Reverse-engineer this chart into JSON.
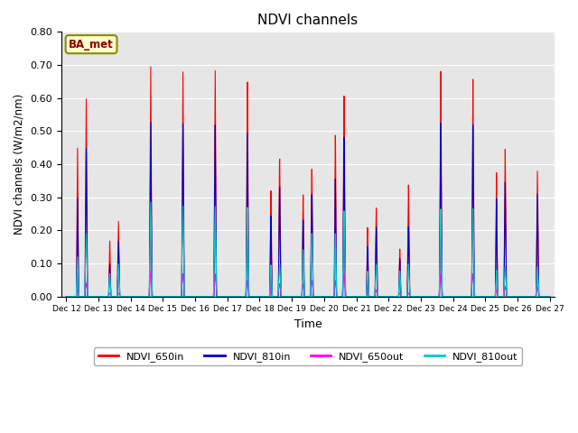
{
  "title": "NDVI channels",
  "xlabel": "Time",
  "ylabel": "NDVI channels (W/m2/nm)",
  "ylim": [
    0.0,
    0.8
  ],
  "annotation": "BA_met",
  "bg_color": "#e6e6e6",
  "line_colors": {
    "NDVI_650in": "#ff0000",
    "NDVI_810in": "#0000cc",
    "NDVI_650out": "#ff00ff",
    "NDVI_810out": "#00cccc"
  },
  "spike_peaks_650in": [
    0.6,
    0.23,
    0.71,
    0.7,
    0.71,
    0.68,
    0.44,
    0.41,
    0.64,
    0.28,
    0.35,
    0.7,
    0.67,
    0.45,
    0.38
  ],
  "spike_peaks2_650in": [
    0.45,
    0.17,
    0.0,
    0.0,
    0.0,
    0.0,
    0.34,
    0.33,
    0.52,
    0.22,
    0.15,
    0.0,
    0.0,
    0.38,
    0.0
  ],
  "spike_peaks_810in": [
    0.45,
    0.17,
    0.54,
    0.54,
    0.54,
    0.52,
    0.35,
    0.33,
    0.51,
    0.22,
    0.22,
    0.54,
    0.53,
    0.35,
    0.31
  ],
  "spike_peaks2_810in": [
    0.3,
    0.1,
    0.0,
    0.0,
    0.0,
    0.0,
    0.26,
    0.25,
    0.38,
    0.16,
    0.12,
    0.0,
    0.0,
    0.3,
    0.0
  ],
  "spike_peaks_650out": [
    0.04,
    0.01,
    0.08,
    0.07,
    0.07,
    0.05,
    0.04,
    0.05,
    0.07,
    0.02,
    0.01,
    0.07,
    0.07,
    0.03,
    0.03
  ],
  "spike_peaks2_650out": [
    0.02,
    0.01,
    0.0,
    0.0,
    0.0,
    0.0,
    0.03,
    0.04,
    0.05,
    0.02,
    0.01,
    0.0,
    0.0,
    0.02,
    0.0
  ],
  "spike_peaks_810out": [
    0.19,
    0.1,
    0.29,
    0.28,
    0.28,
    0.28,
    0.1,
    0.2,
    0.27,
    0.1,
    0.1,
    0.27,
    0.27,
    0.09,
    0.09
  ],
  "spike_peaks2_810out": [
    0.12,
    0.07,
    0.0,
    0.0,
    0.0,
    0.0,
    0.1,
    0.15,
    0.2,
    0.08,
    0.08,
    0.0,
    0.0,
    0.08,
    0.0
  ],
  "tick_labels": [
    "Dec 12",
    "Dec 13",
    "Dec 14",
    "Dec 15",
    "Dec 16",
    "Dec 17",
    "Dec 18",
    "Dec 19",
    "Dec 20",
    "Dec 21",
    "Dec 22",
    "Dec 23",
    "Dec 24",
    "Dec 25",
    "Dec 26",
    "Dec 27"
  ],
  "yticks": [
    0.0,
    0.1,
    0.2,
    0.3,
    0.4,
    0.5,
    0.6,
    0.7,
    0.8
  ]
}
